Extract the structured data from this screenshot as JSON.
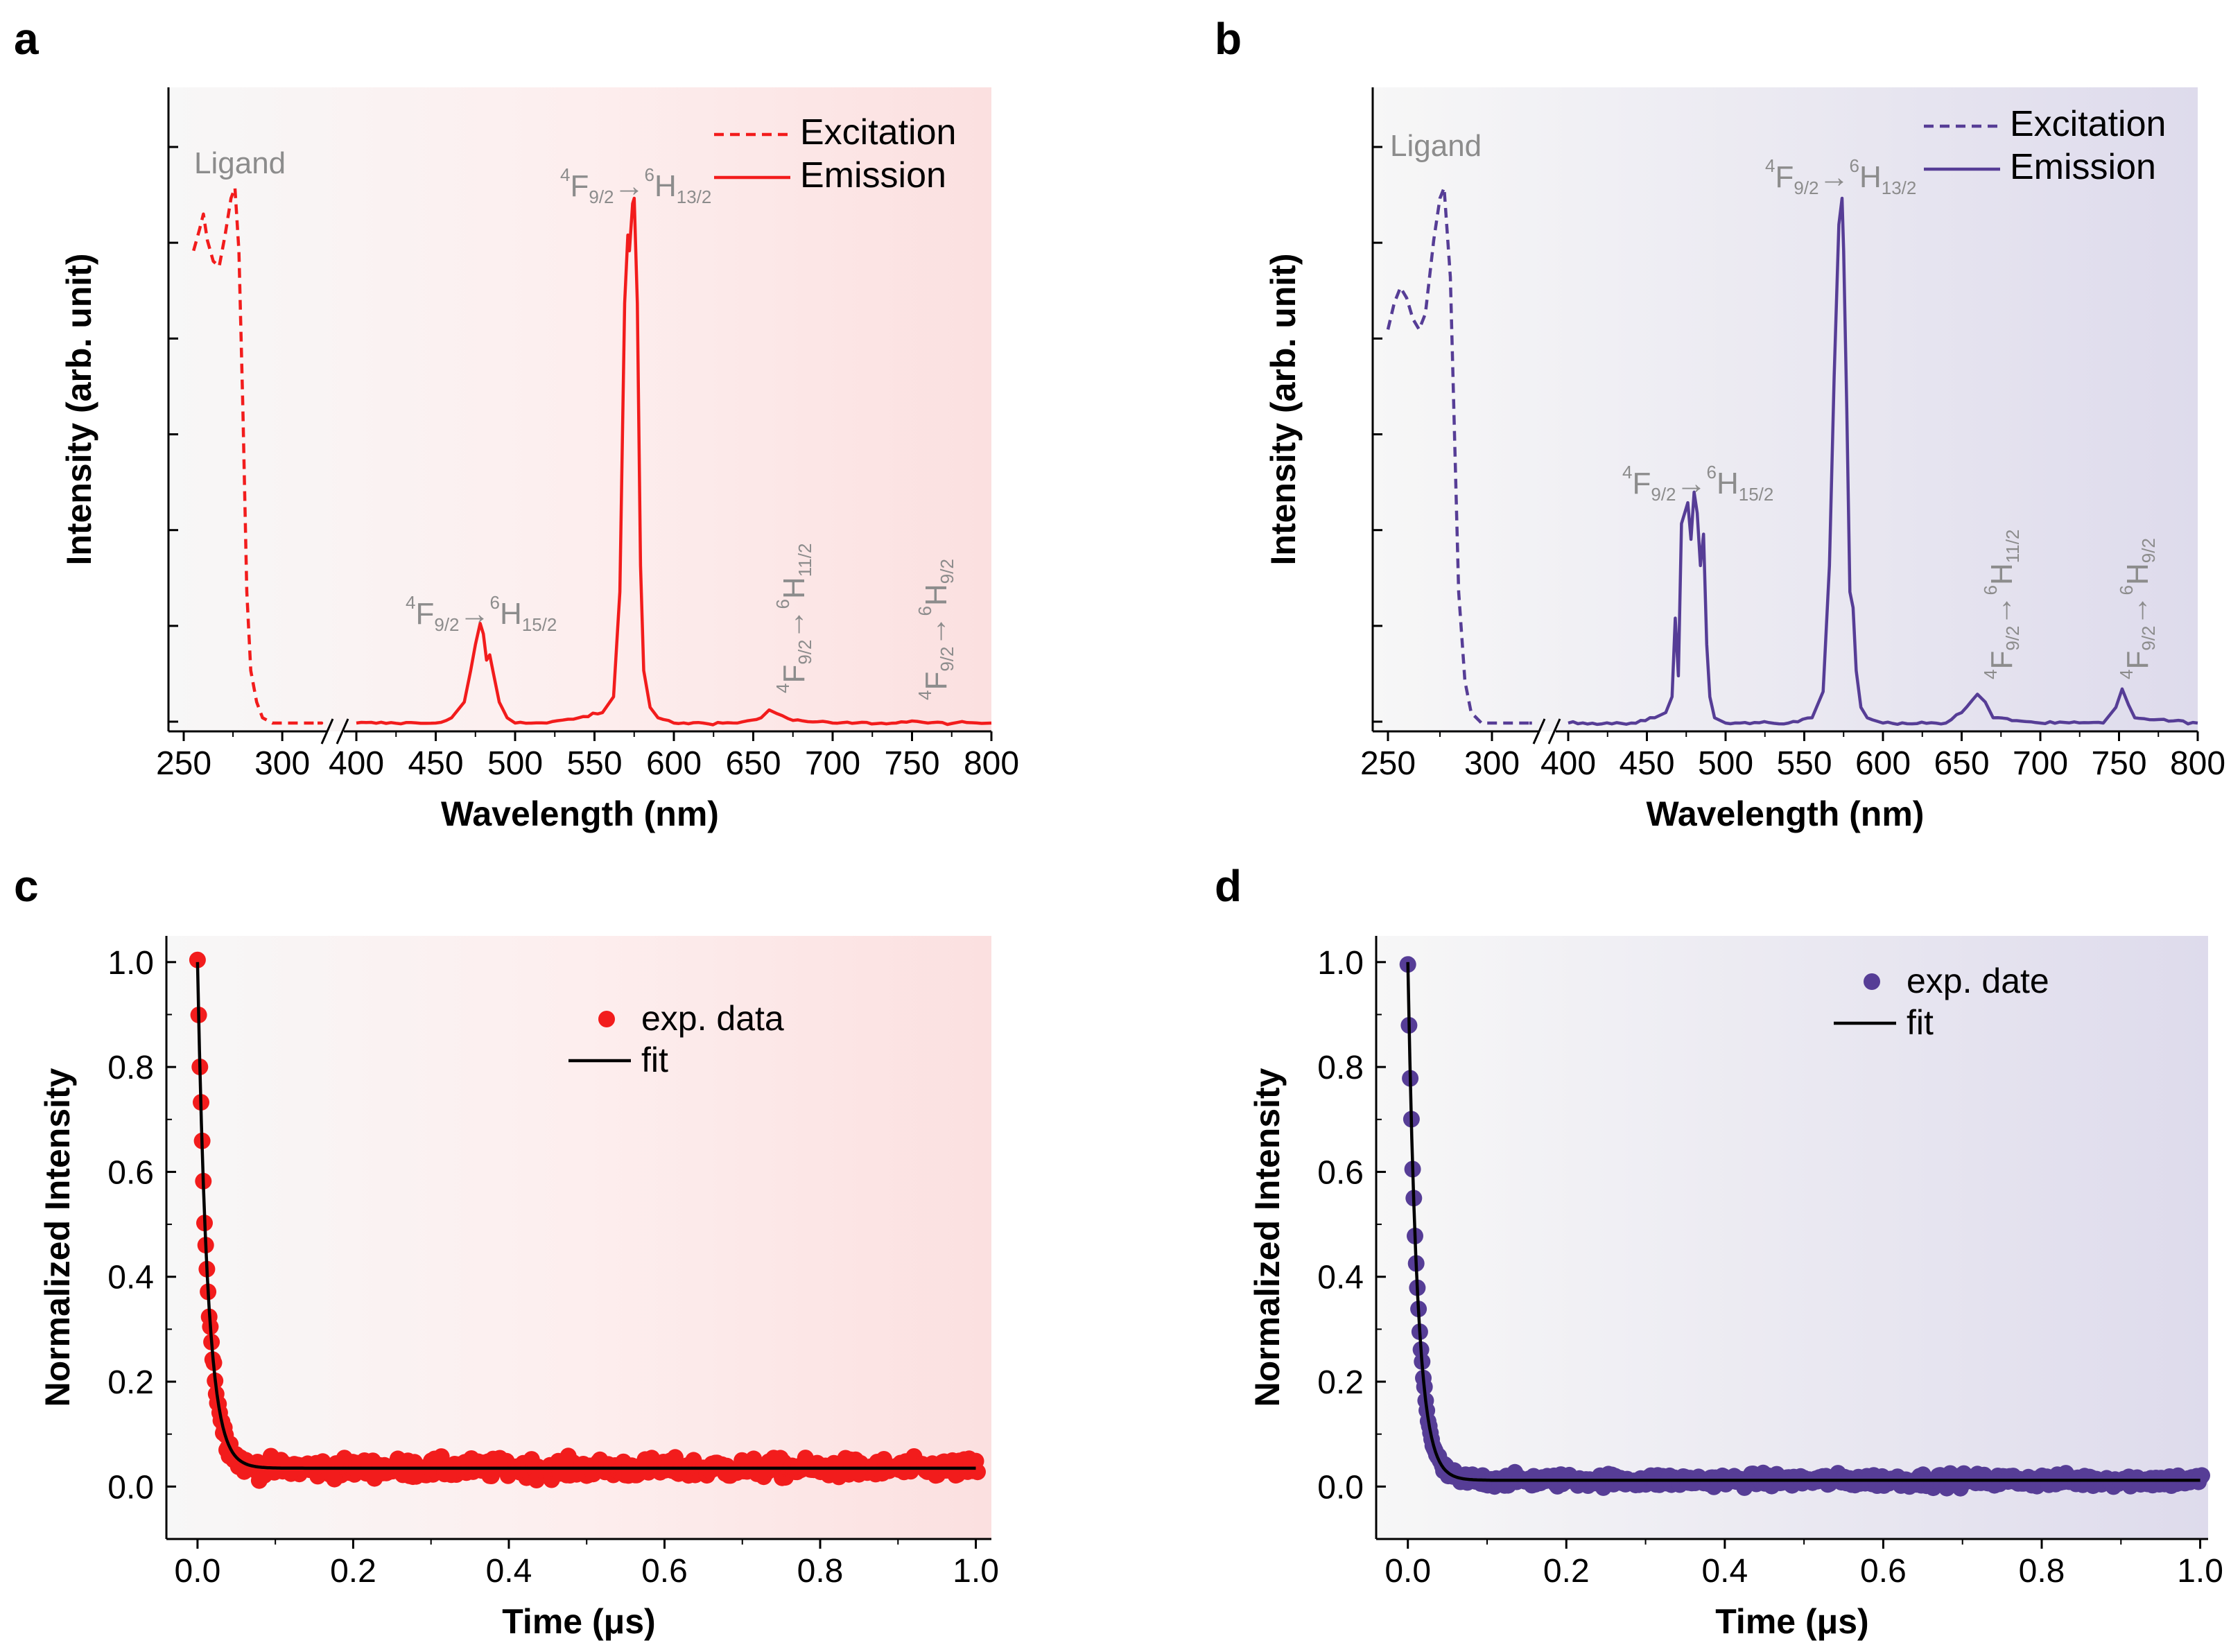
{
  "colors": {
    "red": "#f21c1c",
    "purple": "#563d96",
    "annotation": "#8c8c8c",
    "fit": "#000000"
  },
  "chart_data": [
    {
      "panel": "a",
      "type": "line",
      "title": "",
      "xlabel": "Wavelength (nm)",
      "ylabel": "Intensity (arb. unit)",
      "xticks_left": [
        "250",
        "300"
      ],
      "xticks_right": [
        "400",
        "450",
        "500",
        "550",
        "600",
        "650",
        "700",
        "750",
        "800"
      ],
      "xlim_left": [
        245,
        320
      ],
      "xlim_right": [
        395,
        800
      ],
      "ylim": [
        0,
        1.05
      ],
      "legend": [
        "Excitation",
        "Emission"
      ],
      "legend_position": "top-right",
      "annotations": {
        "ligand": "Ligand",
        "t1": {
          "pre": "4",
          "F": "F",
          "s1": "9/2",
          "arrow": "→",
          "post": "6",
          "H": "H",
          "s2": "15/2"
        },
        "t2": {
          "pre": "4",
          "F": "F",
          "s1": "9/2",
          "arrow": "→",
          "post": "6",
          "H": "H",
          "s2": "13/2"
        },
        "t3": {
          "pre": "4",
          "F": "F",
          "s1": "9/2",
          "arrow": "→",
          "post": "6",
          "H": "H",
          "s2": "11/2"
        },
        "t4": {
          "pre": "4",
          "F": "F",
          "s1": "9/2",
          "arrow": "→",
          "post": "6",
          "H": "H",
          "s2": "9/2"
        }
      },
      "series": [
        {
          "name": "Excitation",
          "style": "dashed",
          "x": [
            255,
            258,
            260,
            262,
            265,
            268,
            271,
            274,
            276,
            278,
            280,
            282,
            284,
            287,
            290,
            295,
            305,
            320
          ],
          "y": [
            0.9,
            0.94,
            0.97,
            0.92,
            0.88,
            0.87,
            0.93,
            1.0,
            1.02,
            0.9,
            0.6,
            0.25,
            0.1,
            0.04,
            0.01,
            0.0,
            0.0,
            0.0
          ]
        },
        {
          "name": "Emission",
          "style": "solid",
          "x": [
            400,
            450,
            460,
            468,
            472,
            475,
            478,
            480,
            482,
            484,
            486,
            490,
            495,
            500,
            520,
            540,
            555,
            562,
            566,
            569,
            571,
            572,
            574,
            575,
            577,
            579,
            581,
            585,
            590,
            600,
            640,
            655,
            660,
            665,
            675,
            700,
            740,
            750,
            760,
            800
          ],
          "y": [
            0.0,
            0.0,
            0.01,
            0.04,
            0.1,
            0.15,
            0.19,
            0.17,
            0.12,
            0.13,
            0.1,
            0.04,
            0.01,
            0.0,
            0.0,
            0.01,
            0.02,
            0.05,
            0.25,
            0.8,
            0.93,
            0.9,
            0.99,
            1.0,
            0.8,
            0.3,
            0.1,
            0.03,
            0.01,
            0.0,
            0.0,
            0.01,
            0.025,
            0.018,
            0.005,
            0.0,
            0.0,
            0.004,
            0.0,
            0.0
          ]
        }
      ]
    },
    {
      "panel": "b",
      "type": "line",
      "title": "",
      "xlabel": "Wavelength (nm)",
      "ylabel": "Intensity (arb. unit)",
      "xticks_left": [
        "250",
        "300"
      ],
      "xticks_right": [
        "400",
        "450",
        "500",
        "550",
        "600",
        "650",
        "700",
        "750",
        "800"
      ],
      "xlim_left": [
        245,
        320
      ],
      "xlim_right": [
        395,
        800
      ],
      "ylim": [
        0,
        1.05
      ],
      "legend": [
        "Excitation",
        "Emission"
      ],
      "legend_position": "top-right",
      "annotations": {
        "ligand": "Ligand",
        "t1": {
          "pre": "4",
          "F": "F",
          "s1": "9/2",
          "arrow": "→",
          "post": "6",
          "H": "H",
          "s2": "15/2"
        },
        "t2": {
          "pre": "4",
          "F": "F",
          "s1": "9/2",
          "arrow": "→",
          "post": "6",
          "H": "H",
          "s2": "13/2"
        },
        "t3": {
          "pre": "4",
          "F": "F",
          "s1": "9/2",
          "arrow": "→",
          "post": "6",
          "H": "H",
          "s2": "11/2"
        },
        "t4": {
          "pre": "4",
          "F": "F",
          "s1": "9/2",
          "arrow": "→",
          "post": "6",
          "H": "H",
          "s2": "9/2"
        }
      },
      "series": [
        {
          "name": "Excitation",
          "style": "dashed",
          "x": [
            250,
            253,
            256,
            259,
            262,
            265,
            268,
            272,
            275,
            277,
            280,
            282,
            284,
            287,
            290,
            295,
            305,
            320
          ],
          "y": [
            0.75,
            0.8,
            0.83,
            0.81,
            0.77,
            0.75,
            0.78,
            0.92,
            1.0,
            1.02,
            0.85,
            0.55,
            0.25,
            0.08,
            0.02,
            0.0,
            0.0,
            0.0
          ]
        },
        {
          "name": "Emission",
          "style": "solid",
          "x": [
            400,
            440,
            455,
            462,
            466,
            468,
            470,
            472,
            474,
            476,
            478,
            480,
            482,
            484,
            486,
            488,
            490,
            493,
            500,
            540,
            555,
            562,
            566,
            569,
            572,
            574,
            575,
            577,
            579,
            581,
            583,
            586,
            590,
            600,
            640,
            650,
            660,
            665,
            670,
            700,
            740,
            748,
            752,
            756,
            760,
            800
          ],
          "y": [
            0.0,
            0.0,
            0.01,
            0.02,
            0.05,
            0.2,
            0.09,
            0.38,
            0.4,
            0.42,
            0.35,
            0.44,
            0.4,
            0.3,
            0.36,
            0.15,
            0.05,
            0.01,
            0.0,
            0.0,
            0.01,
            0.06,
            0.3,
            0.66,
            0.95,
            1.0,
            0.9,
            0.6,
            0.25,
            0.22,
            0.1,
            0.03,
            0.01,
            0.0,
            0.0,
            0.02,
            0.055,
            0.04,
            0.01,
            0.0,
            0.0,
            0.03,
            0.065,
            0.035,
            0.01,
            0.0
          ]
        }
      ]
    },
    {
      "panel": "c",
      "type": "scatter",
      "title": "",
      "xlabel": "Time (μs)",
      "ylabel": "Normalized Intensity",
      "xlim": [
        -0.04,
        1.02
      ],
      "ylim": [
        -0.1,
        1.05
      ],
      "xticks": [
        "0.0",
        "0.2",
        "0.4",
        "0.6",
        "0.8",
        "1.0"
      ],
      "yticks": [
        "0.0",
        "0.2",
        "0.4",
        "0.6",
        "0.8",
        "1.0"
      ],
      "legend": [
        "exp. data",
        "fit"
      ],
      "legend_position": "top-right",
      "series": [
        {
          "name": "exp. data",
          "style": "markers",
          "model": "exp_decay",
          "y0": 0.035,
          "amplitude": 0.965,
          "tau": 0.013,
          "noise": 0.018,
          "t_range": [
            0.0,
            1.0
          ],
          "points": 260
        },
        {
          "name": "fit",
          "style": "line",
          "model": "exp_decay",
          "y0": 0.035,
          "amplitude": 0.965,
          "tau": 0.013
        }
      ]
    },
    {
      "panel": "d",
      "type": "scatter",
      "title": "",
      "xlabel": "Time (μs)",
      "ylabel": "Normalized Intensity",
      "xlim": [
        -0.04,
        1.01
      ],
      "ylim": [
        -0.1,
        1.05
      ],
      "xticks": [
        "0.0",
        "0.2",
        "0.4",
        "0.6",
        "0.8",
        "1.0"
      ],
      "yticks": [
        "0.0",
        "0.2",
        "0.4",
        "0.6",
        "0.8",
        "1.0"
      ],
      "legend": [
        "exp. date",
        "fit"
      ],
      "legend_position": "top-right",
      "series": [
        {
          "name": "exp. date",
          "style": "markers",
          "model": "exp_decay",
          "y0": 0.012,
          "amplitude": 0.988,
          "tau": 0.012,
          "noise": 0.012,
          "t_range": [
            0.0,
            1.0
          ],
          "points": 260
        },
        {
          "name": "fit",
          "style": "line",
          "model": "exp_decay",
          "y0": 0.012,
          "amplitude": 0.988,
          "tau": 0.012
        }
      ]
    }
  ]
}
